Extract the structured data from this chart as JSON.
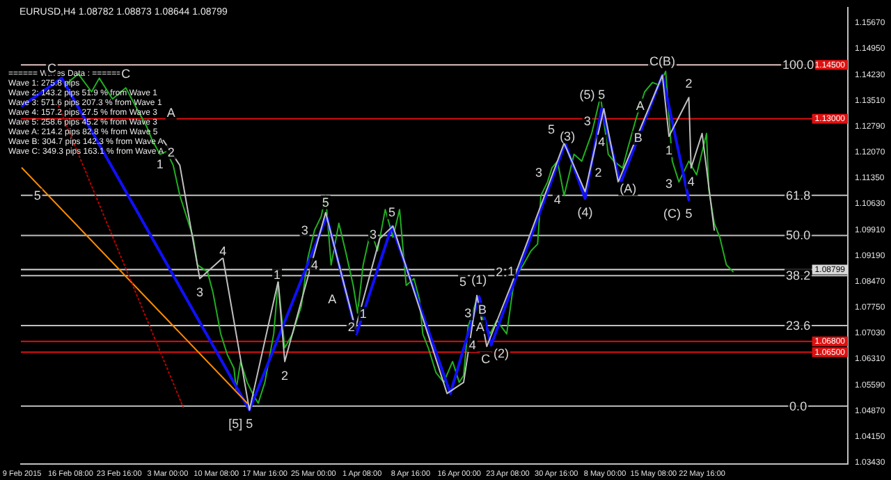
{
  "chart_data": {
    "type": "line",
    "title": "EURUSD,H4 1.08782 1.08873 1.08644 1.08799",
    "xlim": [
      "2015-02-08T20:00",
      "2015-06-13T16:00"
    ],
    "xticks": [
      {
        "value": "2015-02-09T00:00",
        "label": "9 Feb 2015"
      },
      {
        "value": "2015-02-16T08:00",
        "label": "16 Feb 08:00"
      },
      {
        "value": "2015-02-23T16:00",
        "label": "23 Feb 16:00"
      },
      {
        "value": "2015-03-03T00:00",
        "label": "3 Mar 00:00"
      },
      {
        "value": "2015-03-10T08:00",
        "label": "10 Mar 08:00"
      },
      {
        "value": "2015-03-17T16:00",
        "label": "17 Mar 16:00"
      },
      {
        "value": "2015-03-25T00:00",
        "label": "25 Mar 00:00"
      },
      {
        "value": "2015-04-01T08:00",
        "label": "1 Apr 08:00"
      },
      {
        "value": "2015-04-08T16:00",
        "label": "8 Apr 16:00"
      },
      {
        "value": "2015-04-16T00:00",
        "label": "16 Apr 00:00"
      },
      {
        "value": "2015-04-23T08:00",
        "label": "23 Apr 08:00"
      },
      {
        "value": "2015-04-30T16:00",
        "label": "30 Apr 16:00"
      },
      {
        "value": "2015-05-08T00:00",
        "label": "8 May 00:00"
      },
      {
        "value": "2015-05-15T08:00",
        "label": "15 May 08:00"
      },
      {
        "value": "2015-05-22T16:00",
        "label": "22 May 16:00"
      }
    ],
    "ylim": [
      1.0339,
      1.1609
    ],
    "yticks": [
      {
        "value": 1.0343,
        "label": "1.03430"
      },
      {
        "value": 1.0415,
        "label": "1.04150"
      },
      {
        "value": 1.0487,
        "label": "1.04870"
      },
      {
        "value": 1.0559,
        "label": "1.05590"
      },
      {
        "value": 1.0631,
        "label": "1.06310"
      },
      {
        "value": 1.0703,
        "label": "1.07030"
      },
      {
        "value": 1.0775,
        "label": "1.07750"
      },
      {
        "value": 1.0847,
        "label": "1.08470"
      },
      {
        "value": 1.0919,
        "label": "1.09190"
      },
      {
        "value": 1.0991,
        "label": "1.09910"
      },
      {
        "value": 1.1063,
        "label": "1.10630"
      },
      {
        "value": 1.1135,
        "label": "1.11350"
      },
      {
        "value": 1.1207,
        "label": "1.12070"
      },
      {
        "value": 1.1279,
        "label": "1.12790"
      },
      {
        "value": 1.1351,
        "label": "1.13510"
      },
      {
        "value": 1.1423,
        "label": "1.14230"
      },
      {
        "value": 1.1495,
        "label": "1.14950"
      },
      {
        "value": 1.1567,
        "label": "1.15670"
      }
    ],
    "grid": false,
    "legend": false,
    "marker": "none",
    "series": [
      {
        "color": "#20b020",
        "line_style": "solid",
        "x": [
          "2015-02-15T12:00",
          "2015-02-17T12:00",
          "2015-02-19T12:00",
          "2015-02-20T16:00",
          "2015-02-22T16:00",
          "2015-02-24T16:00",
          "2015-02-26T16:00",
          "2015-02-27T20:00",
          "2015-02-28T16:00",
          "2015-03-01T20:00",
          "2015-03-02T20:00",
          "2015-03-03T20:00",
          "2015-03-04T20:00",
          "2015-03-05T20:00",
          "2015-03-06T20:00",
          "2015-03-07T12:00",
          "2015-03-09T00:00",
          "2015-03-09T20:00",
          "2015-03-11T00:00",
          "2015-03-12T00:00",
          "2015-03-13T00:00",
          "2015-03-13T08:00",
          "2015-03-14T00:00",
          "2015-03-15T00:00",
          "2015-03-16T00:00",
          "2015-03-16T16:00",
          "2015-03-17T16:00",
          "2015-03-19T00:00",
          "2015-03-19T16:00",
          "2015-03-20T16:00",
          "2015-03-21T20:00",
          "2015-03-23T04:00",
          "2015-03-24T04:00",
          "2015-03-25T04:00",
          "2015-03-26T04:00",
          "2015-03-26T20:00",
          "2015-03-27T16:00",
          "2015-03-28T20:00",
          "2015-03-29T20:00",
          "2015-03-31T00:00",
          "2015-03-31T16:00",
          "2015-04-01T12:00",
          "2015-04-02T16:00",
          "2015-04-03T16:00",
          "2015-04-04T20:00",
          "2015-04-06T00:00",
          "2015-04-07T00:00",
          "2015-04-08T00:00",
          "2015-04-09T04:00",
          "2015-04-10T00:00",
          "2015-04-10T12:00",
          "2015-04-11T08:00",
          "2015-04-12T12:00",
          "2015-04-13T16:00",
          "2015-04-15T00:00",
          "2015-04-16T00:00",
          "2015-04-16T16:00",
          "2015-04-17T08:00",
          "2015-04-18T16:00",
          "2015-04-19T16:00",
          "2015-04-20T16:00",
          "2015-04-21T16:00",
          "2015-04-23T04:00",
          "2015-04-24T08:00",
          "2015-04-25T16:00",
          "2015-04-26T20:00",
          "2015-04-27T20:00",
          "2015-04-28T08:00",
          "2015-04-29T08:00",
          "2015-04-30T00:00",
          "2015-04-30T20:00",
          "2015-05-01T20:00",
          "2015-05-03T08:00",
          "2015-05-04T12:00",
          "2015-05-06T00:00",
          "2015-05-07T08:00",
          "2015-05-08T12:00",
          "2015-05-09T08:00",
          "2015-05-10T16:00",
          "2015-05-11T12:00",
          "2015-05-12T16:00",
          "2015-05-14T00:00",
          "2015-05-15T04:00",
          "2015-05-16T04:00",
          "2015-05-17T04:00",
          "2015-05-18T04:00",
          "2015-05-19T04:00",
          "2015-05-20T16:00",
          "2015-05-21T20:00",
          "2015-05-23T08:00",
          "2015-05-23T16:00",
          "2015-05-24T12:00",
          "2015-05-25T08:00",
          "2015-05-26T08:00",
          "2015-05-27T08:00"
        ],
        "values": [
          1.1394,
          1.1425,
          1.1375,
          1.1413,
          1.1355,
          1.1386,
          1.1317,
          1.1278,
          1.124,
          1.1201,
          1.1209,
          1.117,
          1.1086,
          1.1028,
          1.097,
          1.0893,
          1.0874,
          1.0816,
          1.0701,
          1.0643,
          1.0605,
          1.0547,
          1.0624,
          1.0566,
          1.0528,
          1.0508,
          1.0566,
          1.0701,
          1.0847,
          1.0662,
          1.0701,
          1.0778,
          1.0913,
          1.099,
          1.1028,
          1.1086,
          1.0893,
          1.1009,
          1.0932,
          1.0836,
          1.0759,
          1.0893,
          1.099,
          1.0932,
          1.1047,
          1.097,
          1.1047,
          1.0836,
          1.0855,
          1.0797,
          1.0701,
          1.0662,
          1.0593,
          1.0566,
          1.0624,
          1.0566,
          1.0585,
          1.072,
          1.0797,
          1.0739,
          1.0701,
          1.0739,
          1.0701,
          1.0855,
          1.0893,
          1.0932,
          1.0951,
          1.1086,
          1.1124,
          1.1163,
          1.1182,
          1.1086,
          1.1201,
          1.1182,
          1.1259,
          1.1363,
          1.1201,
          1.1182,
          1.1163,
          1.1221,
          1.1298,
          1.1375,
          1.1401,
          1.1394,
          1.1432,
          1.1182,
          1.1124,
          1.1182,
          1.1144,
          1.1259,
          1.1105,
          1.1009,
          1.097,
          1.0893,
          1.0874
        ]
      },
      {
        "color": "#1010ff",
        "line_style": "solid",
        "x": [
          "2015-02-09T00:00",
          "2015-02-15T00:00",
          "2015-03-15T08:00",
          "2015-03-27T00:00",
          "2015-03-31T12:00",
          "2015-04-05T20:00",
          "2015-04-14T16:00",
          "2015-04-19T00:00",
          "2015-04-20T20:00",
          "2015-05-02T00:00",
          "2015-05-05T00:00",
          "2015-05-07T12:00",
          "2015-05-10T08:00",
          "2015-05-16T16:00",
          "2015-05-20T16:00"
        ],
        "values": [
          1.1336,
          1.1413,
          1.0489,
          1.1028,
          1.0701,
          1.1001,
          1.0535,
          1.0805,
          1.067,
          1.1232,
          1.1078,
          1.1328,
          1.112,
          1.1421,
          1.1074
        ]
      },
      {
        "color": "#ff8c00",
        "line_style": "solid",
        "x": [
          "2015-02-09T00:00",
          "2015-03-15T00:00"
        ],
        "values": [
          1.1163,
          1.0508
        ]
      },
      {
        "color": "#c00000",
        "line_style": "dotted",
        "x": [
          "2015-02-14T12:00",
          "2015-03-05T08:00"
        ],
        "values": [
          1.1336,
          1.0497
        ]
      },
      {
        "color": "#c0c0c0",
        "line_style": "solid",
        "x": [
          "2015-03-02T08:00",
          "2015-03-04T20:00",
          "2015-03-07T20:00",
          "2015-03-11T08:00",
          "2015-03-15T08:00",
          "2015-03-19T16:00",
          "2015-03-20T16:00",
          "2015-03-26T20:00",
          "2015-03-31T08:00",
          "2015-04-04T00:00",
          "2015-04-06T00:00",
          "2015-04-14T04:00",
          "2015-04-16T16:00",
          "2015-04-18T16:00",
          "2015-04-20T04:00",
          "2015-04-23T20:00",
          "2015-05-01T20:00",
          "2015-05-05T00:00",
          "2015-05-07T20:00",
          "2015-05-10T00:00",
          "2015-05-16T16:00",
          "2015-05-17T16:00",
          "2015-05-20T16:00",
          "2015-05-21T00:00",
          "2015-05-22T16:00",
          "2015-05-24T12:00"
        ],
        "values": [
          1.124,
          1.117,
          1.0855,
          1.0913,
          1.0489,
          1.0847,
          1.0624,
          1.1039,
          1.0716,
          1.0966,
          1.1001,
          1.0535,
          1.0566,
          1.0808,
          1.0666,
          1.0836,
          1.1232,
          1.1097,
          1.1328,
          1.1124,
          1.1421,
          1.1251,
          1.1359,
          1.1163,
          1.1259,
          1.099
        ]
      }
    ],
    "ref_lines": [
      {
        "axis": "y",
        "value": 1.145,
        "label": "1.14500",
        "color": "#e01010"
      },
      {
        "axis": "y",
        "value": 1.13,
        "label": "1.13000",
        "color": "#e01010"
      },
      {
        "axis": "y",
        "value": 1.08799,
        "label": "1.08799",
        "color": "#d8d8d8"
      },
      {
        "axis": "y",
        "value": 1.068,
        "label": "1.06800",
        "color": "#e01010"
      },
      {
        "axis": "y",
        "value": 1.065,
        "label": "1.06500",
        "color": "#e01010"
      },
      {
        "axis": "y",
        "value": 1.145,
        "color": "#c0c0c0"
      },
      {
        "axis": "y",
        "value": 1.1087,
        "color": "#c0c0c0"
      },
      {
        "axis": "y",
        "value": 1.0975,
        "color": "#c0c0c0"
      },
      {
        "axis": "y",
        "value": 1.0863,
        "color": "#c0c0c0"
      },
      {
        "axis": "y",
        "value": 1.0724,
        "color": "#c0c0c0"
      },
      {
        "axis": "y",
        "value": 1.05,
        "color": "#c0c0c0"
      }
    ],
    "annotations": [
      "====== Waves Data : ======",
      "Wave 1: 275.8 pips",
      "Wave 2: 143.2 pips 51.9 % from Wave 1",
      "Wave 3: 571.6 pips 207.3 % from Wave 1",
      "Wave 4: 157.2 pips 27.5 % from Wave 3",
      "Wave 5: 258.6 pips 45.2 % from Wave 3",
      "Wave A: 214.2 pips 82.8 % from Wave 5",
      "Wave B: 304.7 pips 142.3 % from Wave A",
      "Wave C: 349.3 pips 163.1 % from Wave A",
      {
        "text": "100.0",
        "x": "2015-06-06T04:00",
        "y": 1.145
      },
      {
        "text": "61.8",
        "x": "2015-06-06T04:00",
        "y": 1.1087
      },
      {
        "text": "50.0",
        "x": "2015-06-06T04:00",
        "y": 1.0975
      },
      {
        "text": "38.2",
        "x": "2015-06-06T04:00",
        "y": 1.0863
      },
      {
        "text": "23.6",
        "x": "2015-06-06T04:00",
        "y": 1.0724
      },
      {
        "text": "0.0",
        "x": "2015-06-06T04:00",
        "y": 1.05
      },
      {
        "text": "5",
        "x": "2015-03-15T08:00",
        "y": 1.0489
      },
      {
        "text": "[5]",
        "x": "2015-03-15T08:00",
        "y": 1.0489
      },
      {
        "text": "(1)",
        "x": "2015-04-19T00:00",
        "y": 1.0851
      },
      {
        "text": "(2)",
        "x": "2015-04-22T08:00",
        "y": 1.0647
      },
      {
        "text": "(3)",
        "x": "2015-05-02T08:00",
        "y": 1.1251
      },
      {
        "text": "(4)",
        "x": "2015-05-05T00:00",
        "y": 1.1078
      },
      {
        "text": "5",
        "x": "2015-05-07T12:00",
        "y": 1.1328
      },
      {
        "text": "(5)",
        "x": "2015-05-07T20:00",
        "y": 1.1328
      },
      {
        "text": "C(B)",
        "x": "2015-05-16T16:00",
        "y": 1.1421
      },
      {
        "text": "(A)",
        "x": "2015-05-11T12:00",
        "y": 1.1105
      },
      {
        "text": "5",
        "x": "2015-05-20T16:00",
        "y": 1.1074
      },
      {
        "text": "(C)",
        "x": "2015-05-20T16:00",
        "y": 1.1074
      },
      {
        "text": "5",
        "x": "2015-02-11T08:00",
        "y": 1.1086
      },
      {
        "text": "5",
        "x": "2015-03-26T20:00",
        "y": 1.1067
      },
      {
        "text": "5",
        "x": "2015-04-05T20:00",
        "y": 1.1001
      },
      {
        "text": "5",
        "x": "2015-04-18T16:00",
        "y": 1.0808
      },
      {
        "text": "5",
        "x": "2015-05-02T00:00",
        "y": 1.1232
      },
      {
        "text": "1",
        "x": "2015-03-19T12:00",
        "y": 1.0866
      },
      {
        "text": "2",
        "x": "2015-03-20T16:00",
        "y": 1.0624
      },
      {
        "text": "3",
        "x": "2015-03-07T20:00",
        "y": 1.0855
      },
      {
        "text": "4",
        "x": "2015-03-11T08:00",
        "y": 1.0932
      },
      {
        "text": "3",
        "x": "2015-03-23T16:00",
        "y": 1.099
      },
      {
        "text": "4",
        "x": "2015-03-25T04:00",
        "y": 1.0893
      },
      {
        "text": "A",
        "x": "2015-03-27T20:00",
        "y": 1.0797
      },
      {
        "text": "3",
        "x": "2015-04-03T00:00",
        "y": 1.0978
      },
      {
        "text": "1",
        "x": "2015-04-01T12:00",
        "y": 1.0757
      },
      {
        "text": "2",
        "x": "2015-04-02T16:00",
        "y": 1.072
      },
      {
        "text": "2",
        "x": "2015-03-03T12:00",
        "y": 1.1207
      },
      {
        "text": "1",
        "x": "2015-03-04T08:00",
        "y": 1.1174
      },
      {
        "text": "C",
        "x": "2015-02-24T16:00",
        "y": 1.1386
      },
      {
        "text": "A",
        "x": "2015-03-03T12:00",
        "y": 1.1317
      },
      {
        "text": "C",
        "x": "2015-02-13T12:00",
        "y": 1.144
      },
      {
        "text": "3",
        "x": "2015-04-28T00:00",
        "y": 1.1151
      },
      {
        "text": "1",
        "x": "2015-04-23T20:00",
        "y": 1.0836
      },
      {
        "text": "2",
        "x": "2015-04-25T00:00",
        "y": 1.0874
      },
      {
        "text": "4",
        "x": "2015-04-30T20:00",
        "y": 1.1074
      },
      {
        "text": "3",
        "x": "2015-05-05T08:00",
        "y": 1.1294
      },
      {
        "text": "4",
        "x": "2015-05-07T12:00",
        "y": 1.1236
      },
      {
        "text": "2",
        "x": "2015-05-07T00:00",
        "y": 1.1151
      },
      {
        "text": "A",
        "x": "2015-05-13T08:00",
        "y": 1.1337
      },
      {
        "text": "B",
        "x": "2015-05-13T00:00",
        "y": 1.1247
      },
      {
        "text": "1",
        "x": "2015-05-17T16:00",
        "y": 1.1251
      },
      {
        "text": "2",
        "x": "2015-05-20T16:00",
        "y": 1.1359
      },
      {
        "text": "3",
        "x": "2015-05-17T16:00",
        "y": 1.112
      },
      {
        "text": "4",
        "x": "2015-05-21T00:00",
        "y": 1.1163
      },
      {
        "text": "B",
        "x": "2015-04-19T12:00",
        "y": 1.0768
      },
      {
        "text": "A",
        "x": "2015-04-19T04:00",
        "y": 1.072
      },
      {
        "text": "C",
        "x": "2015-04-20T20:00",
        "y": 1.067
      },
      {
        "text": "4",
        "x": "2015-04-18T00:00",
        "y": 1.067
      },
      {
        "text": "3",
        "x": "2015-04-17T08:00",
        "y": 1.072
      }
    ]
  }
}
